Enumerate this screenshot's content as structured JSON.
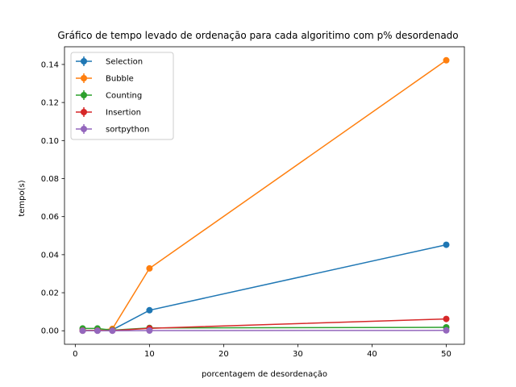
{
  "chart_data": {
    "type": "line",
    "title": "Gráfico de tempo levado de ordenação para cada algoritimo com p% desordenado",
    "xlabel": "porcentagem de desordenação",
    "ylabel": "tempo(s)",
    "x": [
      1,
      3,
      5,
      10,
      50
    ],
    "xlim": [
      -1.45,
      52.45
    ],
    "ylim": [
      -0.0071,
      0.1493
    ],
    "xticks": [
      0,
      10,
      20,
      30,
      40,
      50
    ],
    "xtick_labels": [
      "0",
      "10",
      "20",
      "30",
      "40",
      "50"
    ],
    "yticks": [
      0.0,
      0.02,
      0.04,
      0.06,
      0.08,
      0.1,
      0.12,
      0.14
    ],
    "ytick_labels": [
      "0.00",
      "0.02",
      "0.04",
      "0.06",
      "0.08",
      "0.10",
      "0.12",
      "0.14"
    ],
    "grid": false,
    "legend_position": "upper-left",
    "series": [
      {
        "name": "Selection",
        "color": "#1f77b4",
        "values": [
          0.0001,
          0.0001,
          0.0005,
          0.0108,
          0.0452
        ]
      },
      {
        "name": "Bubble",
        "color": "#ff7f0e",
        "values": [
          0.0001,
          0.0002,
          0.001,
          0.0328,
          0.1422
        ]
      },
      {
        "name": "Counting",
        "color": "#2ca02c",
        "values": [
          0.0012,
          0.0012,
          0.0003,
          0.0015,
          0.0018
        ]
      },
      {
        "name": "Insertion",
        "color": "#d62728",
        "values": [
          0.0001,
          0.0001,
          0.0001,
          0.0013,
          0.0062
        ]
      },
      {
        "name": "sortpython",
        "color": "#9467bd",
        "values": [
          0.0,
          0.0,
          0.0,
          0.0001,
          0.0002
        ]
      }
    ]
  }
}
